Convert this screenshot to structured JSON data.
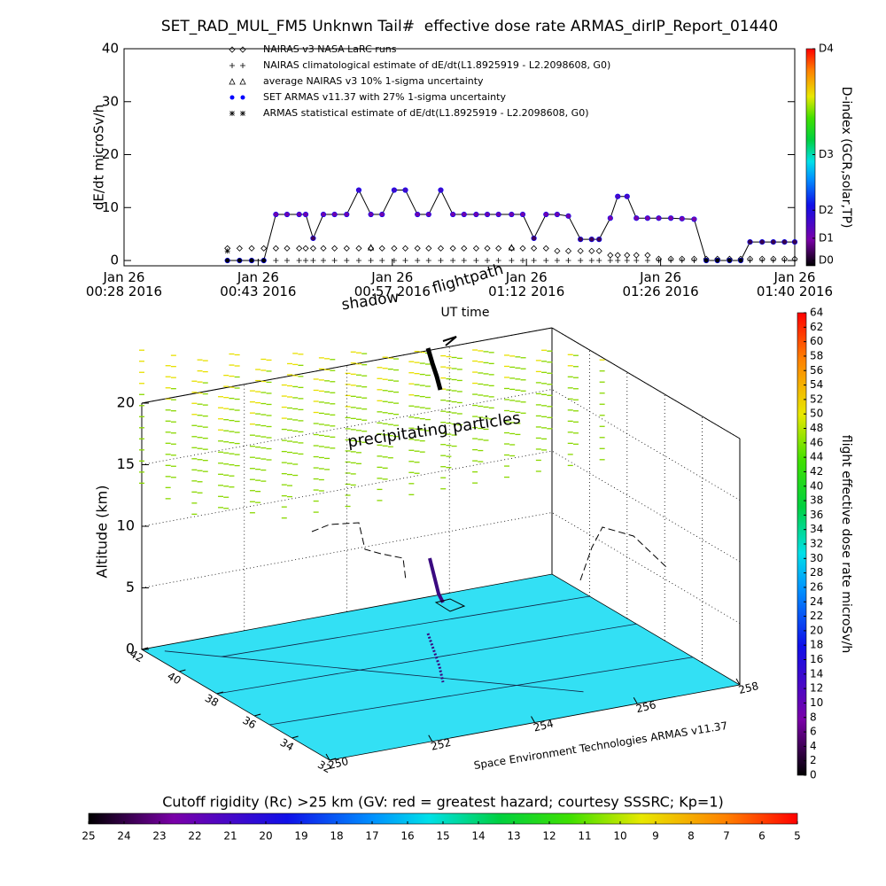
{
  "chart_data": [
    {
      "type": "line",
      "title": "SET_RAD_MUL_FM5 Unknwn Tail#  effective dose rate ARMAS_dirIP_Report_01440",
      "y_label": "dE/dt microSv/h",
      "x_label": "UT time",
      "xlim": [
        28,
        100
      ],
      "xticks": [
        {
          "value": 28,
          "label": "Jan 26 00:28 2016"
        },
        {
          "value": 42.4,
          "label": "Jan 26 00:43 2016"
        },
        {
          "value": 56.8,
          "label": "Jan 26 00:57 2016"
        },
        {
          "value": 71.2,
          "label": "Jan 26 01:12 2016"
        },
        {
          "value": 85.6,
          "label": "Jan 26 01:26 2016"
        },
        {
          "value": 100,
          "label": "Jan 26 01:40 2016"
        }
      ],
      "ylim": [
        -1,
        40
      ],
      "yticks": [
        0,
        10,
        20,
        30,
        40
      ],
      "x": [
        39.1,
        40.4,
        41.7,
        43.0,
        44.3,
        45.5,
        46.8,
        47.5,
        48.3,
        49.4,
        50.6,
        51.9,
        53.2,
        54.5,
        55.7,
        57.0,
        58.2,
        59.5,
        60.7,
        62.0,
        63.3,
        64.5,
        65.8,
        67.0,
        68.2,
        69.6,
        70.8,
        72.0,
        73.3,
        74.5,
        75.7,
        77.0,
        78.2,
        79.0,
        80.2,
        81.0,
        82.0,
        83.0,
        84.2,
        85.4,
        86.7,
        87.9,
        89.2,
        90.5,
        91.7,
        93.0,
        94.2,
        95.2,
        96.5,
        97.7,
        98.9,
        100.0
      ],
      "series": [
        {
          "name": "NAIRAS v3 NASA LaRC runs",
          "marker": "diamond",
          "color": "#000000",
          "line": false,
          "values": [
            2.3,
            2.3,
            2.3,
            2.3,
            2.3,
            2.3,
            2.3,
            2.3,
            2.3,
            2.3,
            2.3,
            2.3,
            2.3,
            2.3,
            2.3,
            2.3,
            2.3,
            2.3,
            2.3,
            2.3,
            2.3,
            2.3,
            2.3,
            2.3,
            2.3,
            2.3,
            2.3,
            2.3,
            2.3,
            1.8,
            1.8,
            1.8,
            1.8,
            1.8,
            1.0,
            1.0,
            1.0,
            1.0,
            1.0,
            0.3,
            0.3,
            0.3,
            0.3,
            0.3,
            0.3,
            0.3,
            0.3,
            0.3,
            0.3,
            0.3,
            0.3,
            0.3
          ]
        },
        {
          "name": "NAIRAS climatological estimate of dE/dt(L1.8925919 - L2.2098608, G0)",
          "marker": "plus",
          "color": "#000000",
          "line": false,
          "values": [
            0,
            0,
            0,
            0,
            0,
            0,
            0,
            0,
            0,
            0,
            0,
            0,
            0,
            0,
            0,
            0,
            0,
            0,
            0,
            0,
            0,
            0,
            0,
            0,
            0,
            0,
            0,
            0,
            0,
            0,
            0,
            0,
            0,
            0,
            0,
            0,
            0,
            0,
            0,
            0,
            0,
            0,
            0,
            0,
            0,
            0,
            0,
            0,
            0,
            0,
            0,
            0
          ]
        },
        {
          "name": "average NAIRAS v3 10% 1-sigma uncertainty",
          "marker": "triangle",
          "color": "#000000",
          "line": false,
          "values": [
            null,
            null,
            null,
            null,
            null,
            null,
            null,
            null,
            null,
            null,
            null,
            null,
            null,
            2.5,
            null,
            null,
            null,
            null,
            null,
            null,
            null,
            null,
            null,
            null,
            null,
            2.5,
            null,
            null,
            null,
            null,
            null,
            null,
            null,
            null,
            null,
            null,
            null,
            null,
            null,
            null,
            null,
            null,
            null,
            null,
            null,
            null,
            null,
            null,
            null,
            null,
            null,
            null
          ]
        },
        {
          "name": "SET ARMAS v11.37 with 27% 1-sigma uncertainty",
          "marker": "circle",
          "color": "#0000ff",
          "line": true,
          "values": [
            0,
            0,
            0,
            0,
            8.7,
            8.7,
            8.7,
            8.7,
            4.2,
            8.7,
            8.7,
            8.7,
            13.3,
            8.7,
            8.7,
            13.3,
            13.3,
            8.7,
            8.7,
            13.3,
            8.7,
            8.7,
            8.7,
            8.7,
            8.7,
            8.7,
            8.7,
            4.2,
            8.7,
            8.7,
            8.4,
            4,
            4,
            4,
            8,
            12.1,
            12.1,
            8,
            8,
            8,
            8,
            7.9,
            7.8,
            0,
            0,
            0,
            0,
            3.5,
            3.5,
            3.5,
            3.5,
            3.5
          ]
        },
        {
          "name": "ARMAS statistical estimate of dE/dt(L1.8925919 - L2.2098608, G0)",
          "marker": "star",
          "color": "#000000",
          "line": false,
          "values": [
            1.8,
            null,
            null,
            null,
            null,
            null,
            null,
            null,
            null,
            null,
            null,
            null,
            null,
            null,
            null,
            null,
            null,
            null,
            null,
            null,
            null,
            null,
            null,
            null,
            null,
            null,
            null,
            null,
            null,
            null,
            null,
            null,
            null,
            null,
            null,
            null,
            null,
            null,
            null,
            null,
            null,
            null,
            null,
            null,
            null,
            null,
            null,
            null,
            null,
            null,
            null,
            null
          ]
        }
      ]
    },
    {
      "type": "colorbar",
      "orientation": "vertical",
      "label": "D-index (GCR,solar,TP)",
      "ylim": [
        -1,
        40
      ],
      "yticks": [
        {
          "value": 0,
          "label": "D0"
        },
        {
          "value": 4.2,
          "label": "D1"
        },
        {
          "value": 9.5,
          "label": "D2"
        },
        {
          "value": 20,
          "label": "D3"
        },
        {
          "value": 40,
          "label": "D4"
        }
      ]
    },
    {
      "type": "surface3d",
      "z_label": "Altitude (km)",
      "zlim": [
        0,
        20
      ],
      "zticks": [
        0,
        5,
        10,
        15,
        20
      ],
      "ylim": [
        32,
        42
      ],
      "yticks": [
        32,
        34,
        36,
        38,
        40,
        42
      ],
      "xlim": [
        250,
        258
      ],
      "xticks": [
        250,
        252,
        254,
        256,
        258
      ],
      "annotations": [
        "shadow",
        "flightpath",
        "precipitating particles"
      ],
      "credit": "Space Environment Technologies ARMAS v11.37"
    },
    {
      "type": "colorbar",
      "orientation": "vertical",
      "label": "flight effective dose rate microSv/h",
      "ylim": [
        0,
        64
      ],
      "yticks": [
        0,
        2,
        4,
        6,
        8,
        10,
        12,
        14,
        16,
        18,
        20,
        22,
        24,
        26,
        28,
        30,
        32,
        34,
        36,
        38,
        40,
        42,
        44,
        46,
        48,
        50,
        52,
        54,
        56,
        58,
        60,
        62,
        64
      ]
    },
    {
      "type": "colorbar",
      "orientation": "horizontal",
      "label": "Cutoff rigidity (Rc) >25 km (GV: red = greatest hazard; courtesy SSSRC; Kp=1)",
      "xlim": [
        25,
        5
      ],
      "xticks": [
        25,
        24,
        23,
        22,
        21,
        20,
        19,
        18,
        17,
        16,
        15,
        14,
        13,
        12,
        11,
        10,
        9,
        8,
        7,
        6,
        5
      ]
    }
  ]
}
